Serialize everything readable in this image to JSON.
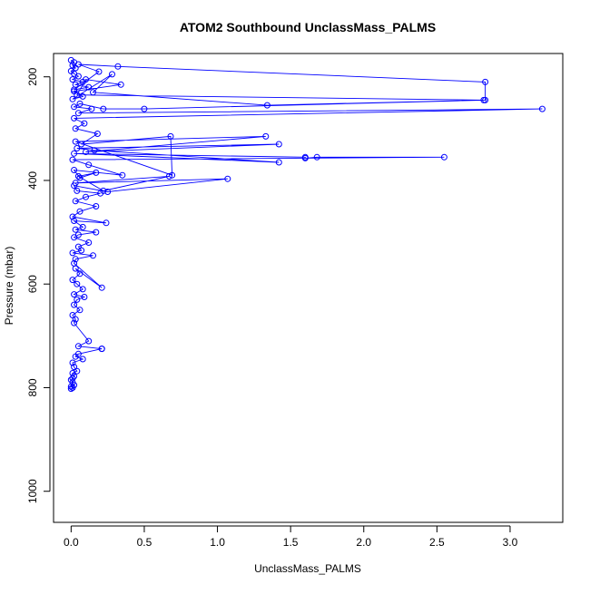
{
  "chart_data": {
    "type": "line",
    "title": "ATOM2 Southbound UnclassMass_PALMS",
    "xlabel": "UnclassMass_PALMS",
    "ylabel": "Pressure (mbar)",
    "xlim": [
      -0.12,
      3.36
    ],
    "ylim": [
      1060,
      155
    ],
    "y_reversed": true,
    "x_ticks": [
      "0.0",
      "0.5",
      "1.0",
      "1.5",
      "2.0",
      "2.5",
      "3.0"
    ],
    "y_ticks": [
      "200",
      "400",
      "600",
      "800",
      "1000"
    ],
    "grid": false,
    "legend": "none",
    "series_color": "#0000ff",
    "x": [
      0.0,
      0.02,
      0.01,
      0.03,
      0.0,
      0.02,
      0.05,
      0.01,
      0.08,
      0.03,
      0.12,
      0.02,
      0.19,
      0.05,
      0.32,
      2.83,
      2.83,
      0.04,
      0.1,
      0.34,
      0.02,
      0.08,
      0.01,
      0.28,
      0.15,
      1.34,
      2.82,
      0.5,
      0.22,
      0.06,
      0.02,
      0.14,
      0.05,
      3.22,
      0.02,
      0.09,
      0.03,
      0.18,
      0.07,
      0.68,
      0.69,
      0.03,
      1.33,
      0.1,
      1.42,
      0.04,
      0.16,
      1.42,
      0.02,
      1.6,
      1.6,
      1.68,
      2.55,
      0.01,
      0.12,
      0.35,
      0.02,
      0.06,
      0.17,
      0.05,
      0.22,
      0.67,
      0.03,
      1.07,
      0.25,
      0.02,
      0.04,
      0.2,
      0.1,
      0.03,
      0.17,
      0.06,
      0.01,
      0.24,
      0.02,
      0.08,
      0.03,
      0.17,
      0.05,
      0.02,
      0.12,
      0.05,
      0.07,
      0.01,
      0.15,
      0.03,
      0.02,
      0.21,
      0.03,
      0.06,
      0.01,
      0.04,
      0.08,
      0.02,
      0.09,
      0.04,
      0.02,
      0.06,
      0.01,
      0.03,
      0.02,
      0.12,
      0.05,
      0.21,
      0.21,
      0.05,
      0.03,
      0.08,
      0.01,
      0.02,
      0.04,
      0.01,
      0.02,
      0.01,
      0.0,
      0.01,
      0.02,
      0.0,
      0.01,
      0.0
    ],
    "y": [
      168,
      172,
      178,
      183,
      189,
      194,
      199,
      205,
      210,
      215,
      220,
      225,
      190,
      176,
      180,
      210,
      245,
      235,
      205,
      215,
      228,
      238,
      243,
      195,
      230,
      255,
      245,
      262,
      262,
      252,
      258,
      262,
      270,
      262,
      280,
      290,
      300,
      310,
      330,
      315,
      390,
      325,
      315,
      345,
      330,
      338,
      342,
      365,
      348,
      355,
      357,
      355,
      355,
      360,
      370,
      390,
      380,
      395,
      385,
      392,
      420,
      392,
      405,
      397,
      422,
      410,
      420,
      425,
      432,
      440,
      450,
      460,
      470,
      482,
      478,
      490,
      495,
      500,
      505,
      510,
      520,
      528,
      535,
      540,
      545,
      552,
      560,
      607,
      570,
      580,
      592,
      600,
      610,
      620,
      625,
      630,
      640,
      650,
      660,
      668,
      675,
      710,
      720,
      725,
      725,
      735,
      740,
      745,
      752,
      760,
      768,
      772,
      778,
      782,
      785,
      790,
      795,
      798,
      800,
      802
    ]
  }
}
